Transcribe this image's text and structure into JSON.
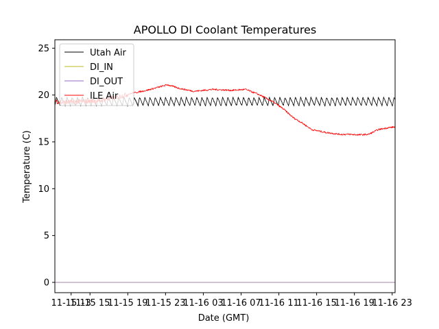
{
  "chart_data": {
    "type": "line",
    "title": "APOLLO DI Coolant Temperatures",
    "xlabel": "Date (GMT)",
    "ylabel": "Temperature (C)",
    "ylim": [
      -1.1,
      25.9
    ],
    "xlim_hours": [
      11.28,
      47.31
    ],
    "yticks": [
      0,
      5,
      10,
      15,
      20,
      25
    ],
    "xticks": [
      {
        "hour": 13,
        "label": "11-15 13"
      },
      {
        "hour": 15,
        "label": "11-15 15"
      },
      {
        "hour": 19,
        "label": "11-15 19"
      },
      {
        "hour": 23,
        "label": "11-15 23"
      },
      {
        "hour": 27,
        "label": "11-16 03"
      },
      {
        "hour": 31,
        "label": "11-16 07"
      },
      {
        "hour": 35,
        "label": "11-16 11"
      },
      {
        "hour": 39,
        "label": "11-16 15"
      },
      {
        "hour": 43,
        "label": "11-16 19"
      },
      {
        "hour": 47,
        "label": "11-16 23"
      }
    ],
    "legend_position": "upper-left",
    "series": [
      {
        "name": "Utah Air",
        "color": "#000000",
        "kind": "oscillating",
        "base": 19.3,
        "amplitude": 0.45,
        "period_hours": 0.55,
        "x": [
          11.28,
          47.31
        ],
        "y": [
          19.3,
          19.3
        ]
      },
      {
        "name": "DI_IN",
        "color": "#bcbd22",
        "kind": "flat",
        "x": [
          11.28,
          47.31
        ],
        "y": [
          0,
          0
        ]
      },
      {
        "name": "DI_OUT",
        "color": "#9467bd",
        "kind": "flat",
        "x": [
          11.28,
          47.31
        ],
        "y": [
          0,
          0
        ]
      },
      {
        "name": "ILE Air",
        "color": "#ff0000",
        "kind": "noisy",
        "x": [
          11.28,
          12.0,
          14.0,
          16.0,
          18.0,
          19.5,
          21.0,
          22.5,
          23.2,
          24.5,
          26.0,
          28.0,
          30.0,
          31.5,
          33.0,
          34.5,
          35.5,
          36.5,
          37.5,
          38.5,
          40.0,
          41.5,
          42.5,
          43.5,
          44.5,
          45.5,
          46.5,
          47.31
        ],
        "y": [
          19.4,
          19.2,
          19.3,
          19.4,
          19.8,
          20.2,
          20.5,
          20.9,
          21.1,
          20.7,
          20.4,
          20.6,
          20.5,
          20.6,
          20.0,
          19.2,
          18.5,
          17.6,
          17.0,
          16.3,
          16.0,
          15.8,
          15.8,
          15.75,
          15.8,
          16.3,
          16.5,
          16.6
        ]
      }
    ]
  }
}
